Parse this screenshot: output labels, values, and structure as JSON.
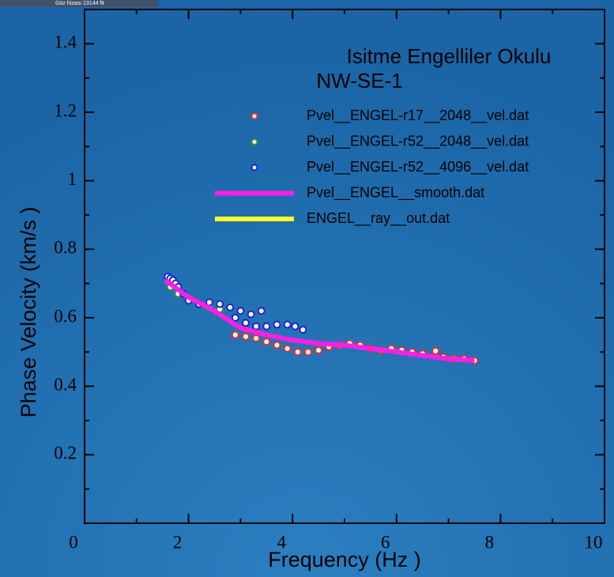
{
  "corner_text": "Göz hizası   13144 fit",
  "chart_data": {
    "type": "line",
    "title": "Isitme Engelliler Okulu",
    "subtitle": "NW-SE-1",
    "x_label": "Frequency    (Hz )",
    "y_label": "Phase Velocity   (km/s )",
    "xlim": [
      0,
      10
    ],
    "ylim": [
      0,
      1.5
    ],
    "xticks": [
      0,
      2,
      4,
      6,
      8,
      10
    ],
    "xminorticks": [
      1,
      3,
      5,
      7,
      9
    ],
    "yticks": [
      0.2,
      0.4,
      0.6,
      0.8,
      1,
      1.2,
      1.4
    ],
    "yminorticks": [
      0.1,
      0.3,
      0.5,
      0.7,
      0.9,
      1.1,
      1.3
    ],
    "series": [
      {
        "name": "Pvel__ENGEL-r17__2048__vel.dat",
        "color": "#e8302a",
        "mode": "markers",
        "x": [
          2.9,
          3.1,
          3.3,
          3.5,
          3.7,
          3.9,
          4.1,
          4.3,
          4.5,
          4.7,
          4.9,
          5.1,
          5.3,
          5.5,
          5.7,
          5.9,
          6.1,
          6.3,
          6.5,
          6.75,
          6.9,
          7.1,
          7.3,
          7.5
        ],
        "values": [
          0.55,
          0.545,
          0.54,
          0.53,
          0.52,
          0.51,
          0.5,
          0.5,
          0.505,
          0.515,
          0.52,
          0.525,
          0.52,
          0.51,
          0.505,
          0.51,
          0.505,
          0.5,
          0.495,
          0.503,
          0.485,
          0.48,
          0.48,
          0.475
        ]
      },
      {
        "name": "Pvel__ENGEL-r52__2048__vel.dat",
        "color": "#2e9a2e",
        "mode": "markers",
        "x": [
          1.65,
          1.8,
          2.0,
          2.2,
          2.4,
          2.6
        ],
        "values": [
          0.69,
          0.67,
          0.65,
          0.64,
          0.63,
          0.625
        ]
      },
      {
        "name": "Pvel__ENGEL-r52__4096__vel.dat",
        "color": "#1c22d8",
        "mode": "markers",
        "x": [
          1.6,
          1.65,
          1.7,
          1.75,
          1.8,
          1.9,
          2.0,
          2.2,
          2.4,
          2.6,
          2.8,
          3.0,
          3.2,
          3.4,
          2.9,
          3.1,
          3.3,
          3.5,
          3.7,
          3.9,
          4.05,
          4.2
        ],
        "values": [
          0.72,
          0.715,
          0.71,
          0.7,
          0.69,
          0.67,
          0.65,
          0.64,
          0.645,
          0.64,
          0.63,
          0.62,
          0.61,
          0.62,
          0.6,
          0.585,
          0.575,
          0.575,
          0.58,
          0.58,
          0.575,
          0.565
        ]
      },
      {
        "name": "Pvel__ENGEL__smooth.dat",
        "color": "#ff1ee6",
        "mode": "line",
        "x": [
          1.55,
          2.0,
          2.5,
          3.0,
          3.5,
          4.0,
          4.5,
          5.0,
          5.5,
          6.0,
          6.5,
          7.0,
          7.5
        ],
        "values": [
          0.71,
          0.66,
          0.62,
          0.57,
          0.55,
          0.535,
          0.525,
          0.52,
          0.51,
          0.5,
          0.49,
          0.48,
          0.475
        ]
      },
      {
        "name": "ENGEL__ray__out.dat",
        "color": "#ffff22",
        "mode": "line",
        "x": [],
        "values": []
      }
    ]
  }
}
